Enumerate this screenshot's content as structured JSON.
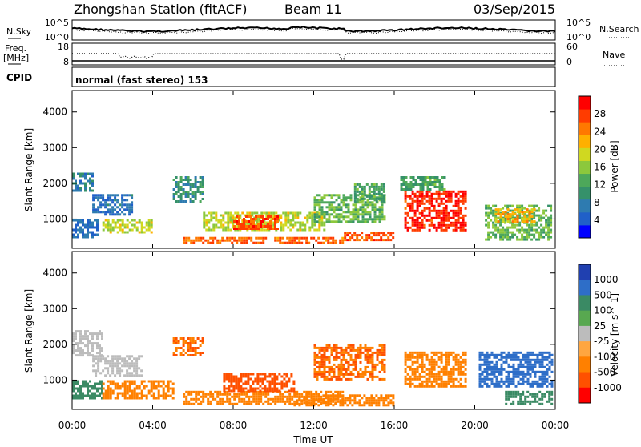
{
  "header": {
    "station": "Zhongshan Station (fitACF)",
    "beam": "Beam 11",
    "date": "03/Sep/2015"
  },
  "top_panels": {
    "nsky_label": "N.Sky",
    "nsearch_label": "N.Search",
    "scale_hi": "10^5",
    "scale_lo": "10^0",
    "freq_label": "Freq.",
    "freq_unit": "[MHz]",
    "freq_ticks": [
      "18",
      "8"
    ],
    "nave_label": "Nave",
    "nave_ticks": [
      "60",
      "0"
    ],
    "cpid_label": "CPID",
    "cpid_text": "normal (fast stereo) 153"
  },
  "x_axis": {
    "title": "Time UT",
    "ticks": [
      "00:00",
      "04:00",
      "08:00",
      "12:00",
      "16:00",
      "20:00",
      "00:00"
    ]
  },
  "chart_data": [
    {
      "type": "heatmap",
      "quantity": "Power",
      "ylabel": "Slant Range [km]",
      "xlabel": "Time UT",
      "x": [
        "00:00",
        "04:00",
        "08:00",
        "12:00",
        "16:00",
        "20:00",
        "00:00"
      ],
      "ylim": [
        180,
        4600
      ],
      "yticks": [
        1000,
        2000,
        3000,
        4000
      ],
      "colorbar": {
        "label": "Power [dB]",
        "range": [
          0,
          32
        ],
        "ticks": [
          4,
          8,
          12,
          16,
          20,
          24,
          28
        ],
        "colors": [
          "#0000ff",
          "#2060c8",
          "#2e7bb0",
          "#35916a",
          "#4da85a",
          "#8cc83c",
          "#d0d820",
          "#ffb000",
          "#ff7800",
          "#ff3c00",
          "#ff0000"
        ]
      },
      "regions": [
        {
          "t": [
            0.0,
            1.3
          ],
          "r": [
            500,
            1000
          ],
          "value": 6
        },
        {
          "t": [
            0.0,
            1.0
          ],
          "r": [
            1800,
            2300
          ],
          "value": 8
        },
        {
          "t": [
            1.0,
            3.0
          ],
          "r": [
            1100,
            1700
          ],
          "value": 6
        },
        {
          "t": [
            1.5,
            4.0
          ],
          "r": [
            600,
            1000
          ],
          "value": 18
        },
        {
          "t": [
            5.0,
            6.5
          ],
          "r": [
            1500,
            2200
          ],
          "value": 10
        },
        {
          "t": [
            5.5,
            13.5
          ],
          "r": [
            300,
            500
          ],
          "value": 26
        },
        {
          "t": [
            6.5,
            12.5
          ],
          "r": [
            700,
            1200
          ],
          "value": 18
        },
        {
          "t": [
            8.0,
            10.2
          ],
          "r": [
            700,
            1100
          ],
          "value": 27
        },
        {
          "t": [
            12.0,
            15.5
          ],
          "r": [
            900,
            1700
          ],
          "value": 14
        },
        {
          "t": [
            13.5,
            16.0
          ],
          "r": [
            400,
            650
          ],
          "value": 27
        },
        {
          "t": [
            14.0,
            15.5
          ],
          "r": [
            1500,
            2000
          ],
          "value": 12
        },
        {
          "t": [
            16.5,
            19.5
          ],
          "r": [
            700,
            1800
          ],
          "value": 29
        },
        {
          "t": [
            16.3,
            18.5
          ],
          "r": [
            1800,
            2200
          ],
          "value": 12
        },
        {
          "t": [
            20.5,
            23.8
          ],
          "r": [
            400,
            1400
          ],
          "value": 14
        },
        {
          "t": [
            21.0,
            23.0
          ],
          "r": [
            900,
            1300
          ],
          "value": 22
        }
      ]
    },
    {
      "type": "heatmap",
      "quantity": "Velocity",
      "ylabel": "Slant Range [km]",
      "xlabel": "Time UT",
      "x": [
        "00:00",
        "04:00",
        "08:00",
        "12:00",
        "16:00",
        "20:00",
        "00:00"
      ],
      "ylim": [
        180,
        4600
      ],
      "yticks": [
        1000,
        2000,
        3000,
        4000
      ],
      "colorbar": {
        "label": "Velocity [m s^-1]",
        "tick_labels": [
          "1000",
          "500",
          "100",
          "25",
          "-25",
          "-100",
          "-500",
          "-1000"
        ],
        "colors": [
          "#2040b0",
          "#2e6ec8",
          "#3a8a64",
          "#58a850",
          "#bcbcbc",
          "#ffa640",
          "#ff8000",
          "#ff5000",
          "#ff0000"
        ]
      },
      "regions": [
        {
          "t": [
            0.0,
            1.5
          ],
          "r": [
            1700,
            2400
          ],
          "value": 0
        },
        {
          "t": [
            0.0,
            1.5
          ],
          "r": [
            500,
            1000
          ],
          "value": 150
        },
        {
          "t": [
            1.0,
            3.5
          ],
          "r": [
            1100,
            1700
          ],
          "value": 0
        },
        {
          "t": [
            1.5,
            5.0
          ],
          "r": [
            500,
            1000
          ],
          "value": -300
        },
        {
          "t": [
            5.0,
            6.5
          ],
          "r": [
            1700,
            2200
          ],
          "value": -500
        },
        {
          "t": [
            5.5,
            13.5
          ],
          "r": [
            300,
            700
          ],
          "value": -300
        },
        {
          "t": [
            7.5,
            11.0
          ],
          "r": [
            700,
            1200
          ],
          "value": -600
        },
        {
          "t": [
            11.0,
            16.0
          ],
          "r": [
            300,
            600
          ],
          "value": -300
        },
        {
          "t": [
            12.0,
            15.5
          ],
          "r": [
            1000,
            2000
          ],
          "value": -500
        },
        {
          "t": [
            16.5,
            19.5
          ],
          "r": [
            800,
            1800
          ],
          "value": -300
        },
        {
          "t": [
            20.2,
            23.8
          ],
          "r": [
            800,
            1800
          ],
          "value": 700
        },
        {
          "t": [
            21.5,
            23.8
          ],
          "r": [
            350,
            700
          ],
          "value": 200
        }
      ]
    }
  ]
}
